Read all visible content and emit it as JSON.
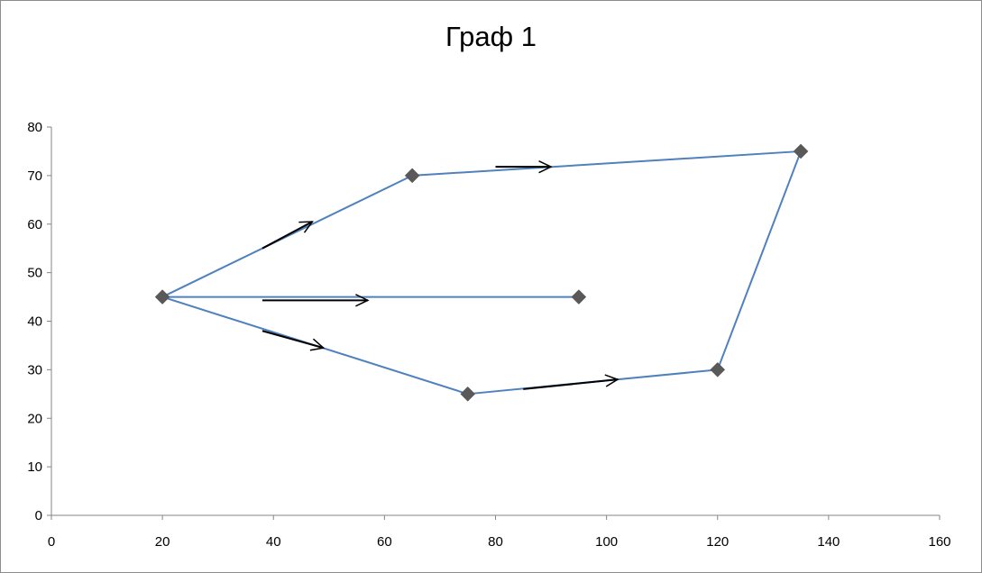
{
  "chart_data": {
    "type": "scatter",
    "title": "Граф 1",
    "xlabel": "",
    "ylabel": "",
    "xlim": [
      0,
      160
    ],
    "ylim": [
      0,
      80
    ],
    "x_ticks": [
      "0",
      "20",
      "40",
      "60",
      "80",
      "100",
      "120",
      "140",
      "160"
    ],
    "y_ticks": [
      "0",
      "10",
      "20",
      "30",
      "40",
      "50",
      "60",
      "70",
      "80"
    ],
    "grid": false,
    "legend": "none",
    "points": [
      {
        "x": 20,
        "y": 45
      },
      {
        "x": 65,
        "y": 70
      },
      {
        "x": 135,
        "y": 75
      },
      {
        "x": 120,
        "y": 30
      },
      {
        "x": 75,
        "y": 25
      },
      {
        "x": 95,
        "y": 45
      }
    ],
    "edges": [
      {
        "from": [
          20,
          45
        ],
        "to": [
          65,
          70
        ]
      },
      {
        "from": [
          65,
          70
        ],
        "to": [
          135,
          75
        ]
      },
      {
        "from": [
          135,
          75
        ],
        "to": [
          120,
          30
        ]
      },
      {
        "from": [
          120,
          30
        ],
        "to": [
          75,
          25
        ]
      },
      {
        "from": [
          75,
          25
        ],
        "to": [
          20,
          45
        ]
      },
      {
        "from": [
          20,
          45
        ],
        "to": [
          95,
          45
        ]
      }
    ],
    "arrows": [
      {
        "from": [
          38,
          55
        ],
        "to": [
          47,
          60.5
        ]
      },
      {
        "from": [
          80,
          71.8
        ],
        "to": [
          90,
          71.8
        ]
      },
      {
        "from": [
          38,
          44.3
        ],
        "to": [
          57,
          44.3
        ]
      },
      {
        "from": [
          38,
          38
        ],
        "to": [
          49,
          34.5
        ]
      },
      {
        "from": [
          85,
          26
        ],
        "to": [
          102,
          28
        ]
      }
    ],
    "colors": {
      "line": "#4f81bd",
      "marker": "#595959",
      "arrow": "#000000",
      "axis": "#868686"
    }
  }
}
